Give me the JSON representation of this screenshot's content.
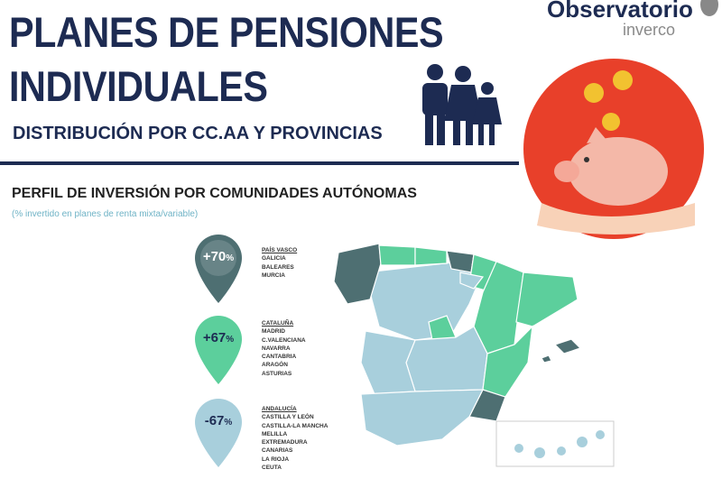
{
  "header": {
    "title_line1": "PLANES DE PENSIONES",
    "title_line2": "INDIVIDUALES",
    "subtitle": "DISTRIBUCIÓN POR CC.AA Y PROVINCIAS"
  },
  "logo": {
    "name": "Observatorio",
    "brand": "inverco"
  },
  "section": {
    "title": "PERFIL DE INVERSIÓN POR COMUNIDADES AUTÓNOMAS",
    "note": "(% invertido en planes de renta mixta/variable)"
  },
  "colors": {
    "navy": "#1d2b52",
    "high": "#4e6f72",
    "mid": "#5ccf9c",
    "low": "#a8cfdc",
    "red": "#e8402a"
  },
  "groups": [
    {
      "label": "+70",
      "unit": "%",
      "regions": [
        "PAÍS VASCO",
        "GALICIA",
        "BALEARES",
        "MURCIA"
      ]
    },
    {
      "label": "+67",
      "unit": "%",
      "regions": [
        "CATALUÑA",
        "MADRID",
        "C.VALENCIANA",
        "NAVARRA",
        "CANTABRIA",
        "ARAGÓN",
        "ASTURIAS"
      ]
    },
    {
      "label": "-67",
      "unit": "%",
      "regions": [
        "ANDALUCÍA",
        "CASTILLA Y LEÓN",
        "CASTILLA-LA MANCHA",
        "MELILLA",
        "EXTREMADURA",
        "CANARIAS",
        "LA RIOJA",
        "CEUTA"
      ]
    }
  ]
}
